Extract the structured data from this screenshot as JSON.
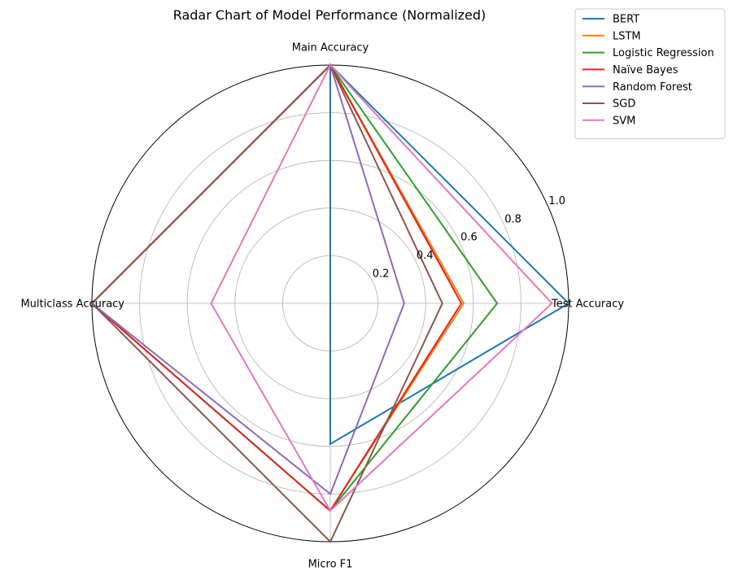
{
  "chart_data": {
    "type": "radar",
    "title": "Radar Chart of Model Performance (Normalized)",
    "axes": [
      "Main Accuracy",
      "Test Accuracy",
      "Micro F1",
      "Multiclass Accuracy"
    ],
    "rlim": [
      0,
      1.0
    ],
    "rticks": [
      "0.2",
      "0.4",
      "0.6",
      "0.8",
      "1.0"
    ],
    "grid": true,
    "legend_position": "top-right",
    "series": [
      {
        "name": "BERT",
        "color": "#1f77b4",
        "values": [
          1.0,
          1.0,
          0.59,
          0.0
        ]
      },
      {
        "name": "LSTM",
        "color": "#ff7f0e",
        "values": [
          1.0,
          0.56,
          0.87,
          1.0
        ]
      },
      {
        "name": "Logistic Regression",
        "color": "#2ca02c",
        "values": [
          1.0,
          0.7,
          0.87,
          1.0
        ]
      },
      {
        "name": "Naïve Bayes",
        "color": "#d62728",
        "values": [
          1.0,
          0.55,
          0.87,
          1.0
        ]
      },
      {
        "name": "Random Forest",
        "color": "#9467bd",
        "values": [
          1.0,
          0.31,
          0.8,
          1.0
        ]
      },
      {
        "name": "SGD",
        "color": "#8c564b",
        "values": [
          1.0,
          0.47,
          1.0,
          1.0
        ]
      },
      {
        "name": "SVM",
        "color": "#e377c2",
        "values": [
          1.0,
          0.93,
          0.87,
          0.5
        ]
      }
    ]
  }
}
